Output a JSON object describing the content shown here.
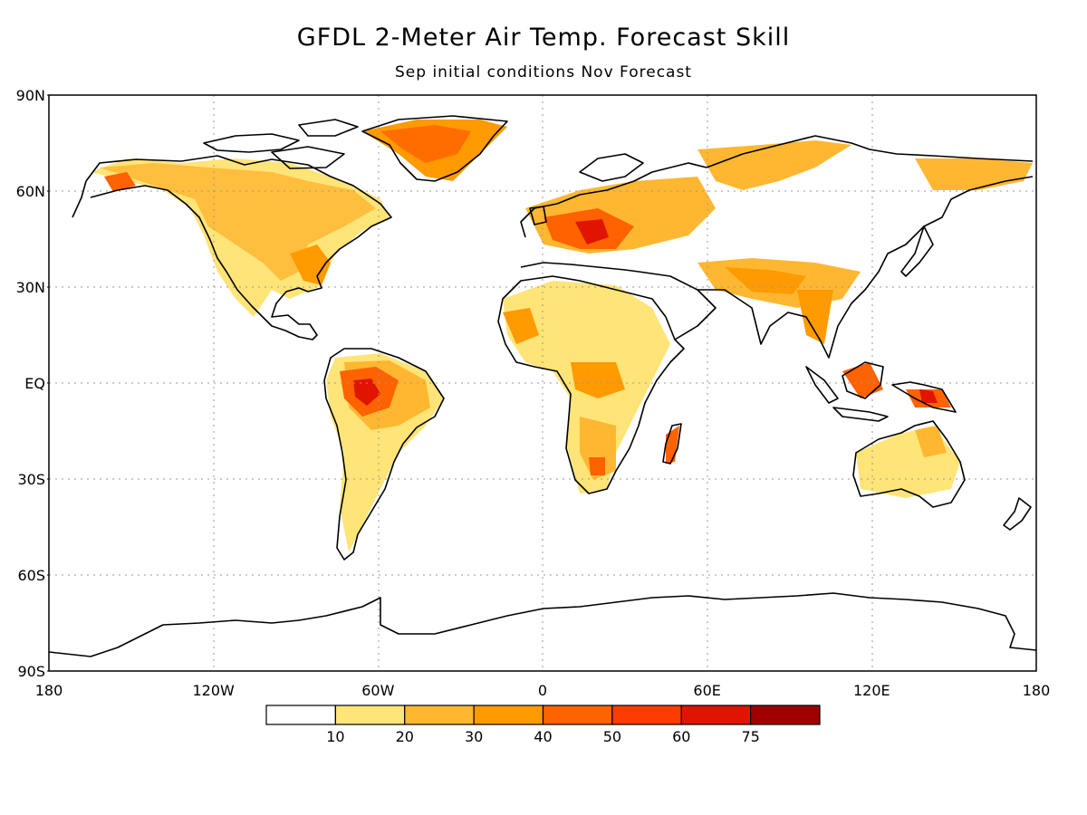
{
  "title": "GFDL 2-Meter Air Temp. Forecast Skill",
  "subtitle": "Sep initial conditions   Nov Forecast",
  "lat_ticks": [
    "90N",
    "60N",
    "30N",
    "EQ",
    "30S",
    "60S",
    "90S"
  ],
  "lon_ticks": [
    "180",
    "120W",
    "60W",
    "0",
    "60E",
    "120E",
    "180"
  ],
  "colorbar": {
    "labels": [
      "10",
      "20",
      "30",
      "40",
      "50",
      "60",
      "75"
    ],
    "colors": [
      "#ffffff",
      "#ffe478",
      "#ffb732",
      "#ff9a00",
      "#ff6200",
      "#ff3c00",
      "#e01400",
      "#a00000"
    ]
  },
  "colors": {
    "land_outline": "#000000",
    "grid": "#999999",
    "skill_low": "#ffe478",
    "skill_mid": "#ffb732",
    "skill_high": "#ff6200",
    "skill_max": "#e01400"
  }
}
